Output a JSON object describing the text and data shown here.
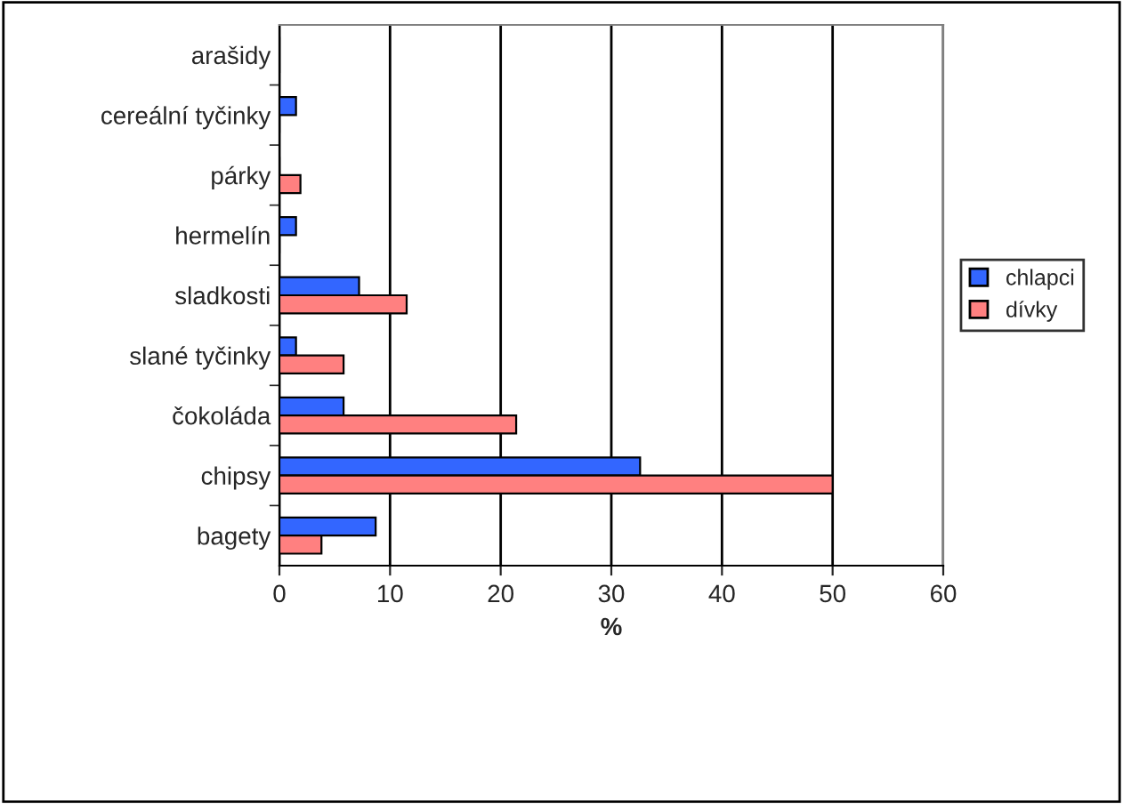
{
  "chart_data": {
    "type": "bar",
    "orientation": "horizontal",
    "xlabel": "%",
    "categories": [
      "arašidy",
      "cereální tyčinky",
      "párky",
      "hermelín",
      "sladkosti",
      "slané tyčinky",
      "čokoláda",
      "chipsy",
      "bagety"
    ],
    "series": [
      {
        "name": "chlapci",
        "color": "#3366ff",
        "values": [
          0,
          1.5,
          0,
          1.5,
          7.2,
          1.5,
          5.8,
          32.6,
          8.7
        ]
      },
      {
        "name": "dívky",
        "color": "#ff8080",
        "values": [
          0,
          0,
          1.9,
          0,
          11.5,
          5.8,
          21.4,
          50,
          3.8
        ]
      }
    ],
    "xlim": [
      0,
      60
    ],
    "xticks": [
      0,
      10,
      20,
      30,
      40,
      50,
      60
    ],
    "grid": "x",
    "legend": "right"
  }
}
